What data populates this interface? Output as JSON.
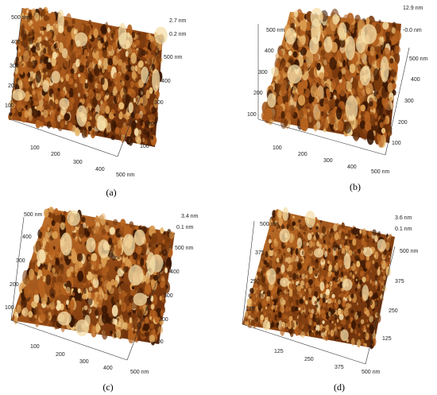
{
  "panels": [
    {
      "caption": "(a)",
      "z_labels": [
        "2.7 nm",
        "0.2 nm"
      ],
      "left_ticks": [
        "500 nm",
        "400",
        "300",
        "200",
        "100"
      ],
      "front_ticks": [
        "100",
        "200",
        "300",
        "400",
        "500 nm"
      ],
      "right_ticks": [
        "500 nm",
        "400",
        "300",
        "200",
        "100"
      ],
      "colors": {
        "dark": "#3a1703",
        "mid": "#b5621f",
        "light": "#f6dfa9"
      }
    },
    {
      "caption": "(b)",
      "z_labels": [
        "12.9 nm",
        "-0.0 nm"
      ],
      "left_ticks": [
        "500 nm",
        "400",
        "300",
        "200",
        "100"
      ],
      "front_ticks": [
        "100",
        "200",
        "300",
        "400",
        "500 nm"
      ],
      "right_ticks": [
        "500 nm",
        "400",
        "300",
        "200",
        "100"
      ],
      "colors": {
        "dark": "#3a1703",
        "mid": "#b5621f",
        "light": "#f6dfa9"
      }
    },
    {
      "caption": "(c)",
      "z_labels": [
        "3.4 nm",
        "0.1 nm"
      ],
      "left_ticks": [
        "500 nm",
        "400",
        "300",
        "200",
        "100"
      ],
      "front_ticks": [
        "100",
        "200",
        "300",
        "400",
        "500 nm"
      ],
      "right_ticks": [
        "500 nm",
        "400",
        "300",
        "200",
        "100"
      ],
      "colors": {
        "dark": "#3a1703",
        "mid": "#b5621f",
        "light": "#f6dfa9"
      }
    },
    {
      "caption": "(d)",
      "z_labels": [
        "3.6 nm",
        "0.1 nm"
      ],
      "left_ticks": [
        "500 nm",
        "375",
        "250",
        "125"
      ],
      "front_ticks": [
        "125",
        "250",
        "375",
        "500 nm"
      ],
      "right_ticks": [
        "500 nm",
        "375",
        "250",
        "125"
      ],
      "colors": {
        "dark": "#3a1703",
        "mid": "#b5621f",
        "light": "#f6dfa9"
      }
    }
  ]
}
